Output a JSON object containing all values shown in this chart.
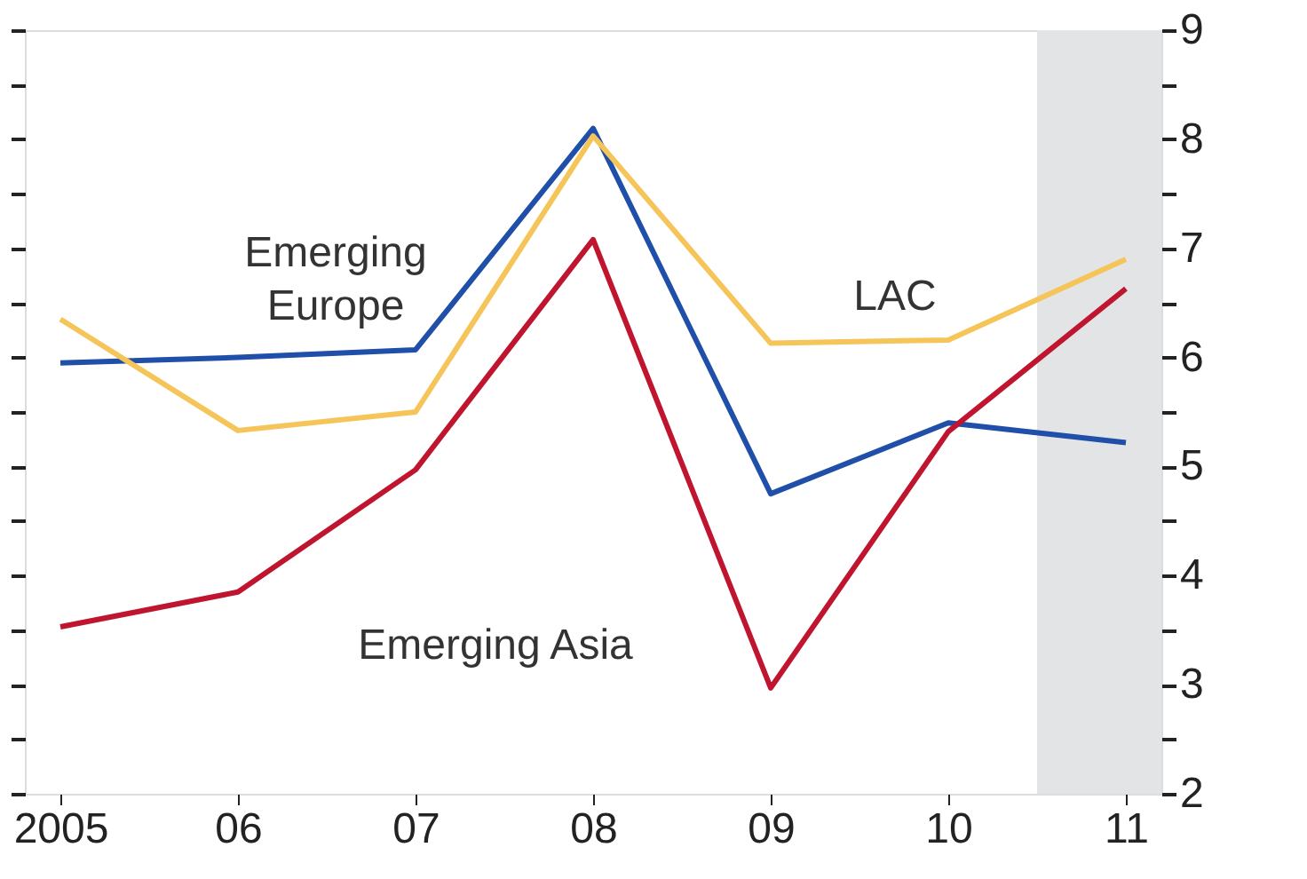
{
  "chart_data": {
    "type": "line",
    "x": [
      2005,
      2006,
      2007,
      2008,
      2009,
      2010,
      2011
    ],
    "series": [
      {
        "name": "Emerging Europe",
        "color": "#1f4fa8",
        "values": [
          5.95,
          6.0,
          6.07,
          8.1,
          4.75,
          5.4,
          5.22
        ]
      },
      {
        "name": "LAC",
        "color": "#f5c55a",
        "values": [
          6.35,
          5.33,
          5.5,
          8.03,
          6.13,
          6.16,
          6.9
        ]
      },
      {
        "name": "Emerging Asia",
        "color": "#c0152f",
        "values": [
          3.53,
          3.85,
          4.97,
          7.08,
          2.97,
          5.32,
          6.63
        ]
      }
    ],
    "xlim": [
      2004.8,
      2011.2
    ],
    "xticks": [
      {
        "value": 2005,
        "label": "2005"
      },
      {
        "value": 2006,
        "label": "06"
      },
      {
        "value": 2007,
        "label": "07"
      },
      {
        "value": 2008,
        "label": "08"
      },
      {
        "value": 2009,
        "label": "09"
      },
      {
        "value": 2010,
        "label": "10"
      },
      {
        "value": 2011,
        "label": "11"
      }
    ],
    "ylim": [
      2,
      9
    ],
    "yticks": [
      2,
      {
        "value": 2.5,
        "label": null
      },
      3,
      {
        "value": 3.5,
        "label": null
      },
      4,
      {
        "value": 4.5,
        "label": null
      },
      5,
      {
        "value": 5.5,
        "label": null
      },
      6,
      {
        "value": 6.5,
        "label": null
      },
      7,
      {
        "value": 7.5,
        "label": null
      },
      8,
      {
        "value": 8.5,
        "label": null
      },
      9
    ],
    "bands": [
      {
        "axis": "x",
        "from": 2010.5,
        "to": 2011.2,
        "color": "#e3e4e6"
      }
    ],
    "grid": false,
    "marker": "none",
    "line_style": "solid"
  }
}
